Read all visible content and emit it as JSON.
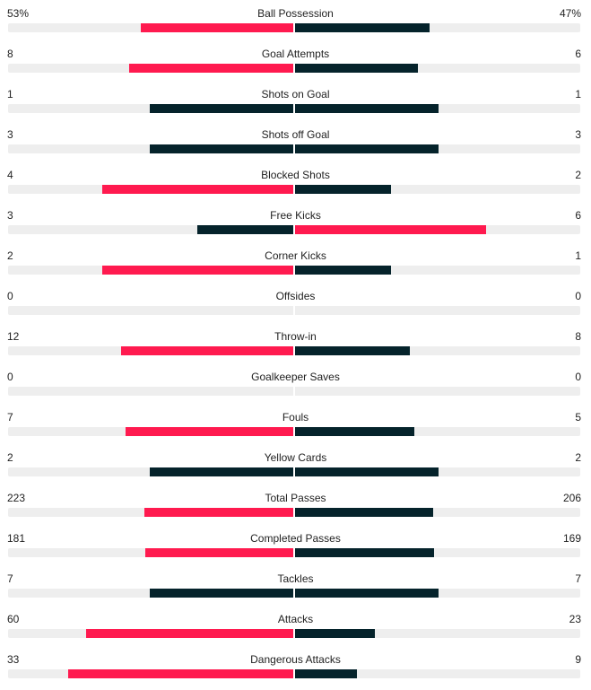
{
  "colors": {
    "leading": "#ff1a4f",
    "trailing": "#05232b",
    "track": "#eeeeee"
  },
  "stats": [
    {
      "label": "Ball Possession",
      "home": "53%",
      "away": "47%",
      "home_value": 53,
      "away_value": 47
    },
    {
      "label": "Goal Attempts",
      "home": "8",
      "away": "6",
      "home_value": 8,
      "away_value": 6
    },
    {
      "label": "Shots on Goal",
      "home": "1",
      "away": "1",
      "home_value": 1,
      "away_value": 1
    },
    {
      "label": "Shots off Goal",
      "home": "3",
      "away": "3",
      "home_value": 3,
      "away_value": 3
    },
    {
      "label": "Blocked Shots",
      "home": "4",
      "away": "2",
      "home_value": 4,
      "away_value": 2
    },
    {
      "label": "Free Kicks",
      "home": "3",
      "away": "6",
      "home_value": 3,
      "away_value": 6
    },
    {
      "label": "Corner Kicks",
      "home": "2",
      "away": "1",
      "home_value": 2,
      "away_value": 1
    },
    {
      "label": "Offsides",
      "home": "0",
      "away": "0",
      "home_value": 0,
      "away_value": 0
    },
    {
      "label": "Throw-in",
      "home": "12",
      "away": "8",
      "home_value": 12,
      "away_value": 8
    },
    {
      "label": "Goalkeeper Saves",
      "home": "0",
      "away": "0",
      "home_value": 0,
      "away_value": 0
    },
    {
      "label": "Fouls",
      "home": "7",
      "away": "5",
      "home_value": 7,
      "away_value": 5
    },
    {
      "label": "Yellow Cards",
      "home": "2",
      "away": "2",
      "home_value": 2,
      "away_value": 2
    },
    {
      "label": "Total Passes",
      "home": "223",
      "away": "206",
      "home_value": 223,
      "away_value": 206
    },
    {
      "label": "Completed Passes",
      "home": "181",
      "away": "169",
      "home_value": 181,
      "away_value": 169
    },
    {
      "label": "Tackles",
      "home": "7",
      "away": "7",
      "home_value": 7,
      "away_value": 7
    },
    {
      "label": "Attacks",
      "home": "60",
      "away": "23",
      "home_value": 60,
      "away_value": 23
    },
    {
      "label": "Dangerous Attacks",
      "home": "33",
      "away": "9",
      "home_value": 33,
      "away_value": 9
    }
  ]
}
